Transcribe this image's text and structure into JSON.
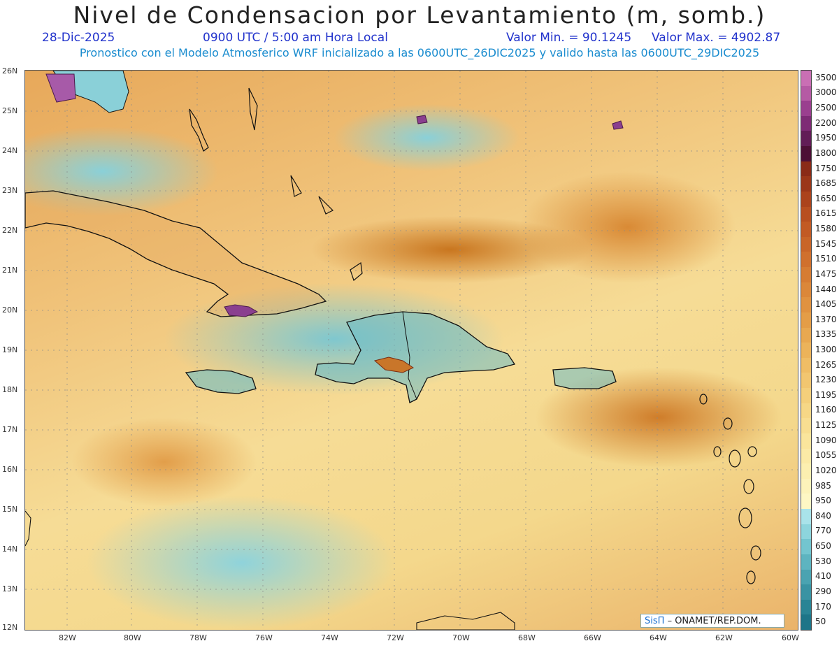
{
  "title": "Nivel de Condensacion por Levantamiento (m, somb.)",
  "date_label": "28-Dic-2025",
  "time_label": "0900 UTC / 5:00 am Hora Local",
  "min_label": "Valor Min. = 90.1245",
  "max_label": "Valor Max. = 4902.87",
  "model_label": "Pronostico con el Modelo Atmosferico WRF inicializado a las 0600UTC_26DIC2025 y valido hasta las  0600UTC_29DIC2025",
  "credit": {
    "brand": "SisΠ",
    "text": "– ONAMET/REP.DOM."
  },
  "lat_labels": [
    "26N",
    "25N",
    "24N",
    "23N",
    "22N",
    "21N",
    "20N",
    "19N",
    "18N",
    "17N",
    "16N",
    "15N",
    "14N",
    "13N",
    "12N"
  ],
  "lon_labels": [
    "82W",
    "80W",
    "78W",
    "76W",
    "74W",
    "72W",
    "70W",
    "68W",
    "66W",
    "64W",
    "62W",
    "60W"
  ],
  "colorbar": {
    "labels": [
      "3500",
      "3000",
      "2500",
      "2200",
      "1950",
      "1800",
      "1750",
      "1685",
      "1650",
      "1615",
      "1580",
      "1545",
      "1510",
      "1475",
      "1440",
      "1405",
      "1370",
      "1335",
      "1300",
      "1265",
      "1230",
      "1195",
      "1160",
      "1125",
      "1090",
      "1055",
      "1020",
      "985",
      "950",
      "840",
      "770",
      "650",
      "530",
      "410",
      "290",
      "170",
      "50"
    ],
    "colors": [
      "#c96fb4",
      "#b55aa4",
      "#9a3f8f",
      "#7e2b75",
      "#621d57",
      "#4d1036",
      "#8a2b17",
      "#9b3719",
      "#ab431c",
      "#b84f20",
      "#c25a24",
      "#c96528",
      "#d0702d",
      "#d67c33",
      "#db8739",
      "#e09240",
      "#e49d47",
      "#e8a850",
      "#ecb35a",
      "#efbd65",
      "#f2c670",
      "#f4cf7b",
      "#f6d786",
      "#f8de91",
      "#fae59c",
      "#fbeaa6",
      "#fcefb0",
      "#fdf3ba",
      "#fef7c4",
      "#a9e3ea",
      "#8dd5dd",
      "#73c5cf",
      "#5db4c0",
      "#4aa3b1",
      "#3993a3",
      "#2a8495",
      "#1e7588"
    ]
  }
}
